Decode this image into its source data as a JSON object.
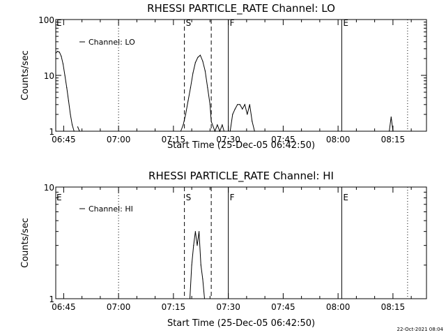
{
  "window": {
    "title": "RHESSI PARTICLE_RATE"
  },
  "footer": {
    "timestamp": "22-Oct-2021 08:04"
  },
  "chart_data": [
    {
      "type": "line",
      "title": "RHESSI PARTICLE_RATE Channel: LO",
      "xlabel": "Start Time (25-Dec-05 06:42:50)",
      "ylabel": "Counts/sec",
      "y_scale": "log",
      "ylim": [
        1,
        100
      ],
      "y_ticks": [
        1,
        10,
        100
      ],
      "y_tick_labels": [
        "1",
        "10",
        "100"
      ],
      "xlim": [
        "06:42:50",
        "08:24:10"
      ],
      "x_ticks": [
        "06:45",
        "07:00",
        "07:15",
        "07:30",
        "07:45",
        "08:00",
        "08:15"
      ],
      "legend": {
        "position": "top-left",
        "entries": [
          "Channel: LO"
        ]
      },
      "grid": false,
      "flag_markers": [
        {
          "label": "E",
          "time": "06:42:50",
          "style": "none"
        },
        {
          "label": "S",
          "time": "07:18:00",
          "style": "dashed"
        },
        {
          "label": "",
          "time": "07:25:20",
          "style": "dashed"
        },
        {
          "label": "F",
          "time": "07:30:00",
          "style": "solid"
        },
        {
          "label": "E",
          "time": "08:01:00",
          "style": "solid"
        }
      ],
      "dotted_lines": [
        "07:00:00",
        "08:19:00"
      ],
      "series": [
        {
          "name": "Channel: LO",
          "x": [
            "06:42:50",
            "06:43:20",
            "06:43:50",
            "06:44:20",
            "06:44:50",
            "06:45:20",
            "06:45:50",
            "06:46:20",
            "06:46:50",
            "06:47:20",
            "06:47:50",
            "06:48:20",
            "06:48:50",
            "06:49:20",
            "06:49:50",
            "06:50:20",
            "07:17:00",
            "07:17:40",
            "07:18:20",
            "07:19:00",
            "07:19:40",
            "07:20:20",
            "07:21:00",
            "07:21:40",
            "07:22:20",
            "07:23:00",
            "07:23:40",
            "07:24:20",
            "07:25:00",
            "07:25:20",
            "07:26:20",
            "07:27:00",
            "07:27:40",
            "07:28:20",
            "07:28:50",
            "07:30:30",
            "07:31:10",
            "07:31:50",
            "07:32:30",
            "07:33:10",
            "07:33:50",
            "07:34:30",
            "07:35:10",
            "07:35:50",
            "07:36:30",
            "07:37:10",
            "08:14:00",
            "08:14:30",
            "08:15:00"
          ],
          "values": [
            25,
            27,
            26,
            22,
            16,
            10,
            6,
            3.5,
            2,
            1.3,
            1,
            null,
            1.2,
            1,
            null,
            null,
            1,
            1.3,
            2,
            3.5,
            6,
            11,
            17,
            21,
            23,
            18,
            12,
            6,
            3,
            1.5,
            1,
            1.3,
            1,
            1.3,
            1,
            1,
            2,
            2.5,
            3,
            3,
            2.5,
            3,
            2,
            3,
            1.5,
            1,
            1,
            1.8,
            1
          ]
        }
      ]
    },
    {
      "type": "line",
      "title": "RHESSI PARTICLE_RATE Channel: HI",
      "xlabel": "Start Time (25-Dec-05 06:42:50)",
      "ylabel": "Counts/sec",
      "y_scale": "log",
      "ylim": [
        1,
        10
      ],
      "y_ticks": [
        1,
        10
      ],
      "y_tick_labels": [
        "1",
        "10"
      ],
      "xlim": [
        "06:42:50",
        "08:24:10"
      ],
      "x_ticks": [
        "06:45",
        "07:00",
        "07:15",
        "07:30",
        "07:45",
        "08:00",
        "08:15"
      ],
      "legend": {
        "position": "top-left",
        "entries": [
          "Channel: HI"
        ]
      },
      "grid": false,
      "flag_markers": [
        {
          "label": "E",
          "time": "06:42:50",
          "style": "none"
        },
        {
          "label": "S",
          "time": "07:18:00",
          "style": "dashed"
        },
        {
          "label": "",
          "time": "07:25:20",
          "style": "dashed"
        },
        {
          "label": "F",
          "time": "07:30:00",
          "style": "solid"
        },
        {
          "label": "E",
          "time": "08:01:00",
          "style": "solid"
        }
      ],
      "dotted_lines": [
        "07:00:00",
        "08:19:00"
      ],
      "series": [
        {
          "name": "Channel: HI",
          "x": [
            "07:19:30",
            "07:20:00",
            "07:20:30",
            "07:21:00",
            "07:21:30",
            "07:22:00",
            "07:22:30",
            "07:23:00",
            "07:23:30"
          ],
          "values": [
            1,
            2,
            3,
            4,
            3,
            4,
            2,
            1.5,
            1
          ]
        }
      ]
    }
  ]
}
